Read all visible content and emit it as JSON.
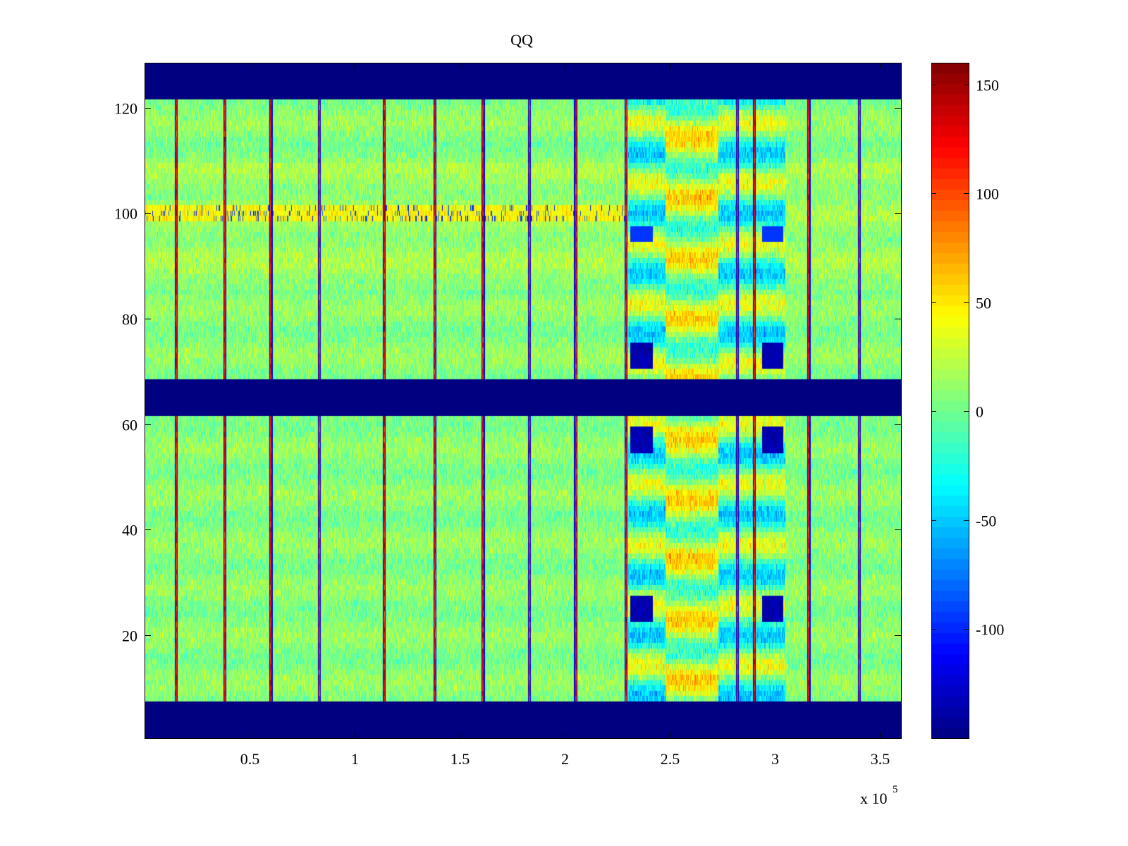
{
  "chart_data": {
    "type": "heatmap",
    "title": "QQ",
    "xlabel": "",
    "ylabel": "",
    "xlim": [
      0,
      360000
    ],
    "ylim": [
      0.5,
      128.5
    ],
    "x_ticks": [
      50000,
      100000,
      150000,
      200000,
      250000,
      300000,
      350000
    ],
    "x_tick_labels": [
      "0.5",
      "1",
      "1.5",
      "2",
      "2.5",
      "3",
      "3.5"
    ],
    "x_exponent_label": {
      "base": "x 10",
      "exponent": "5"
    },
    "y_ticks": [
      20,
      40,
      60,
      80,
      100,
      120
    ],
    "y_tick_labels": [
      "20",
      "40",
      "60",
      "80",
      "100",
      "120"
    ],
    "colormap": "jet",
    "clim": [
      -150,
      160
    ],
    "colorbar_ticks": [
      150,
      100,
      50,
      0,
      -50,
      -100
    ],
    "colorbar_tick_labels": [
      "150",
      "100",
      "50",
      "0",
      "-50",
      "-100"
    ],
    "grid": false,
    "colorbar_position": "right",
    "masked_row_bands": [
      {
        "rows": [
          122,
          128
        ],
        "value": -150
      },
      {
        "rows": [
          62,
          68
        ],
        "value": -150
      },
      {
        "rows": [
          1,
          7
        ],
        "value": -150
      }
    ],
    "background_value": 0,
    "vertical_line_x": [
      15000,
      38000,
      60000,
      83000,
      114000,
      138000,
      161000,
      183000,
      205000,
      229000,
      282000,
      290000,
      316000,
      340000
    ],
    "high_activity_region_x": [
      230000,
      305000
    ],
    "dark_blue_spot_rows": [
      25,
      57,
      73
    ],
    "warm_row_band": 100
  }
}
